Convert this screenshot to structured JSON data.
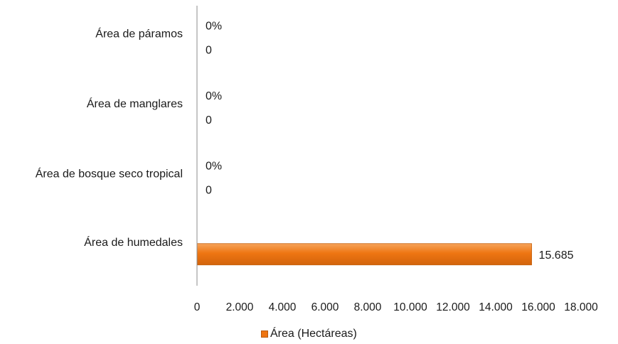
{
  "chart_data": {
    "type": "bar",
    "orientation": "horizontal",
    "categories": [
      "Área de humedales",
      "Área de bosque seco tropical",
      "Área de manglares",
      "Área de páramos"
    ],
    "series": [
      {
        "name": "Área (Hectáreas)",
        "values": [
          15685,
          0,
          0,
          0
        ],
        "value_labels": [
          "15.685",
          "0",
          "0",
          "0"
        ],
        "percent_labels": [
          "",
          "0%",
          "0%",
          "0%"
        ]
      }
    ],
    "xlim": [
      0,
      18000
    ],
    "x_ticks": [
      0,
      2000,
      4000,
      6000,
      8000,
      10000,
      12000,
      14000,
      16000,
      18000
    ],
    "x_tick_labels": [
      "0",
      "2.000",
      "4.000",
      "6.000",
      "8.000",
      "10.000",
      "12.000",
      "14.000",
      "16.000",
      "18.000"
    ],
    "grid": false,
    "legend_position": "bottom",
    "bar_color": "#ee7512"
  }
}
